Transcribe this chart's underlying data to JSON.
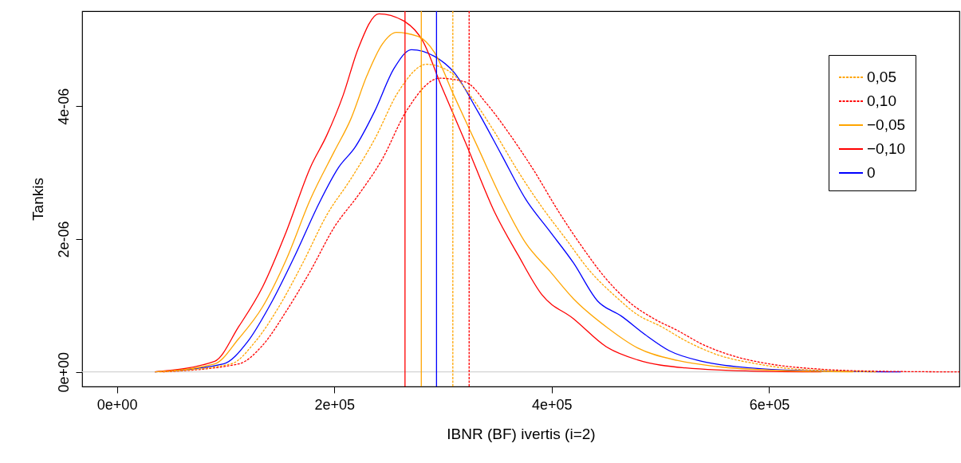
{
  "chart_data": {
    "type": "line",
    "xlabel": "IBNR (BF) ivertis (i=2)",
    "ylabel": "Tankis",
    "xlim": [
      -32000,
      775000
    ],
    "ylim": [
      -2.2e-07,
      5.43e-06
    ],
    "xticks": [
      {
        "value": 0,
        "label": "0e+00"
      },
      {
        "value": 200000,
        "label": "2e+05"
      },
      {
        "value": 400000,
        "label": "4e+05"
      },
      {
        "value": 600000,
        "label": "6e+05"
      }
    ],
    "yticks": [
      {
        "value": 0,
        "label": "0e+00"
      },
      {
        "value": 2e-06,
        "label": "2e-06"
      },
      {
        "value": 4e-06,
        "label": "4e-06"
      }
    ],
    "legend": "top right",
    "grid": false,
    "series": [
      {
        "name": "0,05",
        "color": "#ffa500",
        "line_style": "dashed",
        "x": [
          39000,
          105000,
          127000,
          149000,
          171000,
          193000,
          215000,
          237000,
          259000,
          285000,
          307000,
          325000,
          347000,
          369000,
          391000,
          413000,
          435000,
          457000,
          479000,
          501000,
          523000,
          552000,
          589000,
          626000,
          699000
        ],
        "values": [
          0,
          1.2e-07,
          4.5e-07,
          9.8e-07,
          1.64e-06,
          2.36e-06,
          2.9e-06,
          3.5e-06,
          4.22e-06,
          4.63e-06,
          4.51e-06,
          4.16e-06,
          3.62e-06,
          3.02e-06,
          2.48e-06,
          2e-06,
          1.52e-06,
          1.16e-06,
          8.6e-07,
          6.8e-07,
          4.7e-07,
          2.6e-07,
          1.2e-07,
          4e-08,
          0
        ]
      },
      {
        "name": "0,10",
        "color": "#ff0000",
        "line_style": "dashed",
        "x": [
          42000,
          112000,
          134000,
          156000,
          178000,
          200000,
          222000,
          244000,
          266000,
          297000,
          321000,
          340000,
          362000,
          384000,
          406000,
          428000,
          450000,
          472000,
          494000,
          516000,
          538000,
          567000,
          604000,
          648000,
          699000,
          775000
        ],
        "values": [
          0,
          1.2e-07,
          4e-07,
          9.2e-07,
          1.52e-06,
          2.18e-06,
          2.66e-06,
          3.2e-06,
          3.92e-06,
          4.42e-06,
          4.36e-06,
          4.04e-06,
          3.56e-06,
          3.02e-06,
          2.42e-06,
          1.88e-06,
          1.4e-06,
          1.04e-06,
          8e-07,
          6.2e-07,
          4.2e-07,
          2.4e-07,
          1.1e-07,
          4e-08,
          1e-08,
          0
        ]
      },
      {
        "name": "−0,05",
        "color": "#ffa500",
        "line_style": "solid",
        "x": [
          35000,
          90000,
          112000,
          134000,
          156000,
          178000,
          200000,
          215000,
          230000,
          244000,
          257000,
          277000,
          292000,
          310000,
          332000,
          354000,
          376000,
          398000,
          420000,
          450000,
          479000,
          516000,
          552000,
          611000,
          677000
        ],
        "values": [
          0,
          1.2e-07,
          5e-07,
          9.8e-07,
          1.7e-06,
          2.6e-06,
          3.32e-06,
          3.8e-06,
          4.46e-06,
          4.93e-06,
          5.11e-06,
          5.05e-06,
          4.81e-06,
          4.16e-06,
          3.38e-06,
          2.6e-06,
          1.94e-06,
          1.52e-06,
          1.1e-06,
          6.8e-07,
          3.6e-07,
          1.7e-07,
          8e-08,
          2e-08,
          0
        ]
      },
      {
        "name": "−0,10",
        "color": "#ff0000",
        "line_style": "solid",
        "x": [
          35000,
          90000,
          112000,
          134000,
          156000,
          178000,
          193000,
          208000,
          222000,
          241000,
          263000,
          281000,
          299000,
          321000,
          347000,
          369000,
          391000,
          420000,
          450000,
          479000,
          523000,
          589000,
          648000
        ],
        "values": [
          0,
          1.6e-07,
          6.8e-07,
          1.28e-06,
          2.12e-06,
          3.08e-06,
          3.56e-06,
          4.16e-06,
          4.87e-06,
          5.39e-06,
          5.29e-06,
          4.99e-06,
          4.28e-06,
          3.44e-06,
          2.42e-06,
          1.76e-06,
          1.16e-06,
          8e-07,
          3.8e-07,
          1.8e-07,
          6e-08,
          1e-08,
          0
        ]
      },
      {
        "name": "0",
        "color": "#0000ff",
        "line_style": "solid",
        "x": [
          35000,
          98000,
          120000,
          142000,
          164000,
          186000,
          204000,
          219000,
          237000,
          255000,
          271000,
          292000,
          310000,
          332000,
          354000,
          376000,
          398000,
          420000,
          442000,
          464000,
          486000,
          508000,
          538000,
          582000,
          626000,
          721000
        ],
        "values": [
          0,
          1.2e-07,
          4.5e-07,
          1.04e-06,
          1.76e-06,
          2.54e-06,
          3.08e-06,
          3.38e-06,
          3.92e-06,
          4.57e-06,
          4.85e-06,
          4.75e-06,
          4.51e-06,
          3.92e-06,
          3.26e-06,
          2.6e-06,
          2.12e-06,
          1.64e-06,
          1.07e-06,
          8.4e-07,
          5.6e-07,
          3.2e-07,
          1.6e-07,
          6e-08,
          2e-08,
          0
        ]
      }
    ],
    "ref_lines": [
      {
        "axis": "y",
        "value": 0,
        "color": "#d3d3d3",
        "line_style": "solid"
      },
      {
        "axis": "x",
        "value": 265000,
        "color": "#ff0000",
        "line_style": "solid"
      },
      {
        "axis": "x",
        "value": 280000,
        "color": "#ffa500",
        "line_style": "solid"
      },
      {
        "axis": "x",
        "value": 294000,
        "color": "#0000ff",
        "line_style": "solid"
      },
      {
        "axis": "x",
        "value": 309000,
        "color": "#ffa500",
        "line_style": "dashed"
      },
      {
        "axis": "x",
        "value": 324000,
        "color": "#ff0000",
        "line_style": "dashed"
      }
    ]
  }
}
